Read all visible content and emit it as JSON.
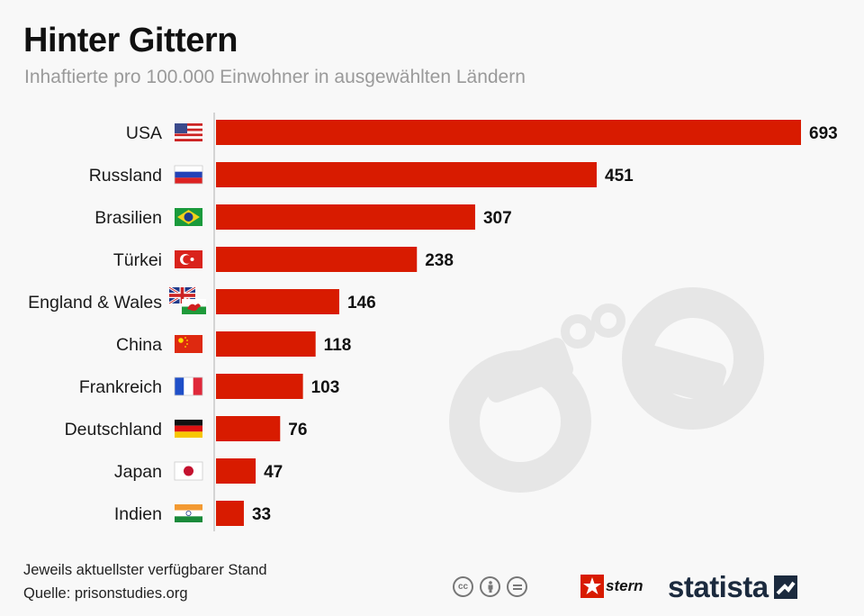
{
  "header": {
    "title": "Hinter Gittern",
    "subtitle": "Inhaftierte pro 100.000 Einwohner in ausgewählten Ländern"
  },
  "colors": {
    "bar": "#d81b00",
    "background": "#f8f8f8",
    "watermark": "#e6e6e6",
    "axis": "#c8c8c8"
  },
  "chart_data": {
    "type": "bar",
    "orientation": "horizontal",
    "categories": [
      "USA",
      "Russland",
      "Brasilien",
      "Türkei",
      "England & Wales",
      "China",
      "Frankreich",
      "Deutschland",
      "Japan",
      "Indien"
    ],
    "values": [
      693,
      451,
      307,
      238,
      146,
      118,
      103,
      76,
      47,
      33
    ],
    "flags": [
      "us-flag",
      "russia-flag",
      "brazil-flag",
      "turkey-flag",
      "uk-wales-flag",
      "china-flag",
      "france-flag",
      "germany-flag",
      "japan-flag",
      "india-flag"
    ],
    "data_labels": true,
    "grid": false,
    "legend": "none",
    "xlim": [
      0,
      693
    ]
  },
  "footer": {
    "note": "Jeweils aktuellster verfügbarer Stand",
    "source": "Quelle: prisonstudies.org",
    "license_icons": [
      "cc-icon",
      "by-icon",
      "nd-icon"
    ],
    "brand_stern": "stern",
    "brand_statista": "statista"
  }
}
